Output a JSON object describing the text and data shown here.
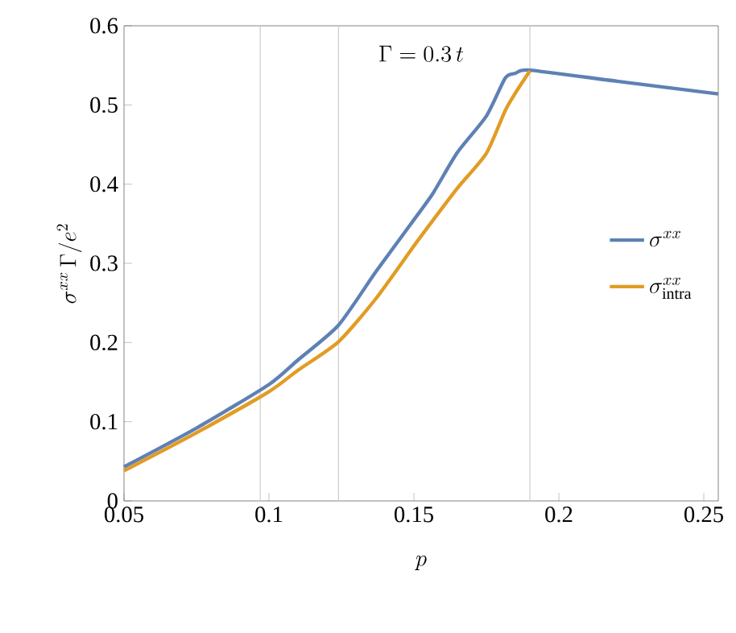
{
  "chart_data": {
    "type": "line",
    "annotations": [
      "\\Gamma = 0.3\\,t"
    ],
    "xlabel": "p",
    "ylabel": "\\sigma^{xx}\\,\\Gamma/e^2",
    "xlim": [
      0.05,
      0.255
    ],
    "ylim": [
      0,
      0.6
    ],
    "xticks": [
      0.05,
      0.1,
      0.15,
      0.2,
      0.25
    ],
    "yticks": [
      0,
      0.1,
      0.2,
      0.3,
      0.4,
      0.5,
      0.6
    ],
    "ref_lines": [
      {
        "axis": "x",
        "value": 0.097,
        "color": "#cccccc"
      },
      {
        "axis": "x",
        "value": 0.124,
        "color": "#cccccc"
      },
      {
        "axis": "x",
        "value": 0.19,
        "color": "#cccccc"
      }
    ],
    "legend": "right",
    "grid": false,
    "marker": "none",
    "line_style": "solid",
    "series": [
      {
        "name": "\\sigma^{xx}",
        "color": "#5e81b5",
        "x": [
          0.05,
          0.075,
          0.1,
          0.11,
          0.124,
          0.137,
          0.15,
          0.1565,
          0.165,
          0.175,
          0.1815,
          0.185,
          0.19,
          0.22,
          0.255
        ],
        "values": [
          0.043,
          0.092,
          0.147,
          0.178,
          0.222,
          0.29,
          0.355,
          0.388,
          0.44,
          0.486,
          0.534,
          0.54,
          0.544,
          0.53,
          0.514
        ]
      },
      {
        "name": "\\sigma^{xx}_{\\mathrm{intra}}",
        "color": "#e19c24",
        "x": [
          0.05,
          0.075,
          0.1,
          0.11,
          0.124,
          0.137,
          0.15,
          0.1565,
          0.165,
          0.175,
          0.1815,
          0.185,
          0.19
        ],
        "values": [
          0.038,
          0.086,
          0.138,
          0.165,
          0.201,
          0.256,
          0.322,
          0.354,
          0.395,
          0.439,
          0.493,
          0.515,
          0.543
        ]
      }
    ]
  }
}
